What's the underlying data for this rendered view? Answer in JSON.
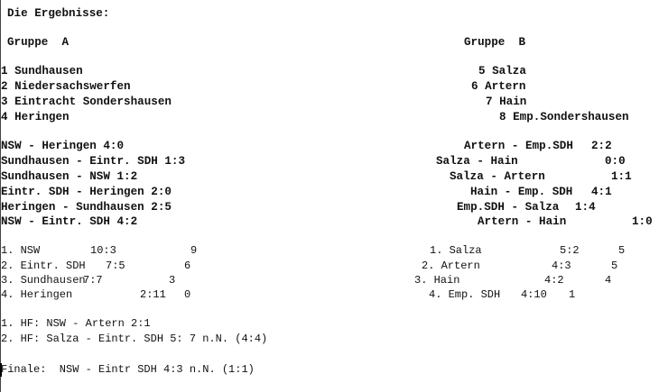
{
  "title": "Die Ergebnisse:",
  "group_a": {
    "heading": "Gruppe  A",
    "teams": [
      "1 Sundhausen",
      "2 Niedersachswerfen",
      "3 Eintracht Sondershausen",
      "4 Heringen"
    ],
    "matches": [
      "NSW - Heringen 4:0",
      "Sundhausen - Eintr. SDH 1:3",
      "Sundhausen - NSW 1:2",
      "Eintr. SDH - Heringen 2:0",
      "Heringen - Sundhausen 2:5",
      "NSW - Eintr. SDH 4:2"
    ],
    "standings": [
      {
        "team": "1. NSW",
        "goals": "10:3",
        "points": "9"
      },
      {
        "team": "2. Eintr. SDH",
        "goals": "7:5",
        "points": "6"
      },
      {
        "team": "3. Sundhausen",
        "goals": "7:7",
        "points": "3"
      },
      {
        "team": "4. Heringen",
        "goals": "2:11",
        "points": "0"
      }
    ]
  },
  "group_b": {
    "heading": "Gruppe  B",
    "teams": [
      "5 Salza",
      "6 Artern",
      "7 Hain",
      "8 Emp.Sondershausen"
    ],
    "matches": [
      {
        "pairing": "Artern - Emp.SDH",
        "score": "2:2"
      },
      {
        "pairing": "Salza - Hain",
        "score": "0:0"
      },
      {
        "pairing": "Salza - Artern",
        "score": "1:1"
      },
      {
        "pairing": "Hain - Emp. SDH",
        "score": "4:1"
      },
      {
        "pairing": "Emp.SDH - Salza",
        "score": "1:4"
      },
      {
        "pairing": "Artern - Hain",
        "score": "1:0"
      }
    ],
    "standings": [
      {
        "team": "1. Salza",
        "goals": "5:2",
        "points": "5"
      },
      {
        "team": "2. Artern",
        "goals": "4:3",
        "points": "5"
      },
      {
        "team": "3. Hain",
        "goals": "4:2",
        "points": "4"
      },
      {
        "team": "4. Emp. SDH",
        "goals": "4:10",
        "points": "1"
      }
    ]
  },
  "semifinals": [
    "1. HF: NSW - Artern 2:1",
    "2. HF: Salza - Eintr. SDH 5: 7 n.N. (4:4)"
  ],
  "final": "Finale:  NSW - Eintr SDH 4:3 n.N. (1:1)"
}
